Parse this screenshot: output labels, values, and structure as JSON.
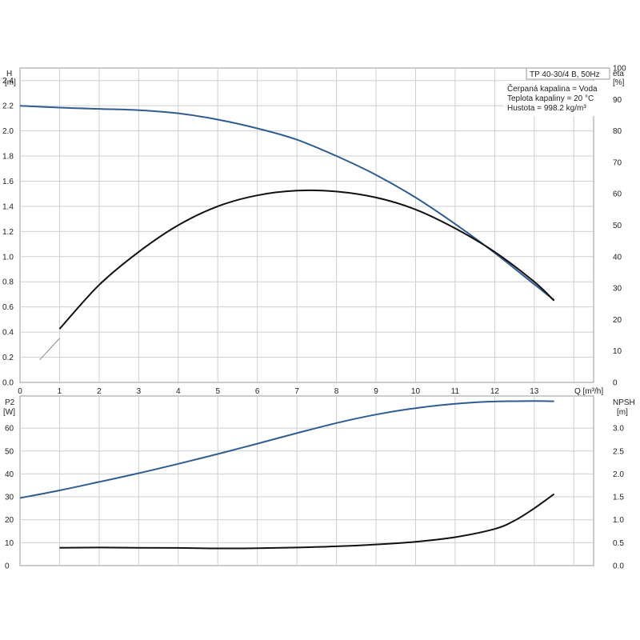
{
  "chart_data": [
    {
      "type": "line",
      "info": {
        "model": "TP 40-30/4 B, 50Hz",
        "lines": [
          "Čerpaná kapalina = Voda",
          "Teplota kapaliny = 20 °C",
          "Hustota = 998.2 kg/m³"
        ]
      },
      "xlabel": "Q [m³/h]",
      "xlim": [
        0,
        14.5
      ],
      "xticks": [
        "0",
        "1",
        "2",
        "3",
        "4",
        "5",
        "6",
        "7",
        "8",
        "9",
        "10",
        "11",
        "12",
        "13"
      ],
      "left_axis": {
        "name": "H",
        "unit": "[m]",
        "ylim": [
          0,
          2.5
        ],
        "ticks": [
          "0.0",
          "0.2",
          "0.4",
          "0.6",
          "0.8",
          "1.0",
          "1.2",
          "1.4",
          "1.6",
          "1.8",
          "2.0",
          "2.2",
          "2.4"
        ]
      },
      "right_axis": {
        "name": "eta",
        "unit": "[%]",
        "ylim": [
          0,
          100
        ],
        "ticks": [
          "0",
          "10",
          "20",
          "30",
          "40",
          "50",
          "60",
          "70",
          "80",
          "90",
          "100"
        ]
      },
      "series": [
        {
          "axis": "left",
          "color": "#2e5c93",
          "x": [
            0,
            1,
            2,
            3,
            4,
            5,
            6,
            7,
            8,
            9,
            10,
            11,
            12,
            13,
            13.5
          ],
          "y": [
            2.2,
            2.185,
            2.175,
            2.165,
            2.14,
            2.09,
            2.02,
            1.93,
            1.8,
            1.65,
            1.47,
            1.26,
            1.03,
            0.78,
            0.655
          ]
        },
        {
          "axis": "right",
          "color": "#111111",
          "x": [
            1,
            2,
            3,
            4,
            5,
            6,
            7,
            8,
            9,
            10,
            11,
            12,
            13,
            13.5
          ],
          "y": [
            17,
            31,
            41.5,
            50,
            56,
            59.5,
            61,
            60.7,
            58.8,
            55,
            49,
            41.5,
            32,
            26
          ]
        }
      ],
      "extension": {
        "x": [
          0.5,
          1
        ],
        "y": [
          0.18,
          0.35
        ]
      }
    },
    {
      "type": "line",
      "left_axis": {
        "name": "P2",
        "unit": "[W]",
        "ylim": [
          0,
          74
        ],
        "ticks": [
          "0",
          "10",
          "20",
          "30",
          "40",
          "50",
          "60"
        ]
      },
      "right_axis": {
        "name": "NPSH",
        "unit": "[m]",
        "ylim": [
          0,
          3.7
        ],
        "ticks": [
          "0.0",
          "0.5",
          "1.0",
          "1.5",
          "2.0",
          "2.5",
          "3.0"
        ]
      },
      "xlim": [
        0,
        14.5
      ],
      "series": [
        {
          "axis": "left",
          "color": "#2e5c93",
          "x": [
            0,
            1,
            2,
            3,
            4,
            5,
            6,
            7,
            8,
            9,
            10,
            11,
            12,
            13,
            13.5
          ],
          "y": [
            29.5,
            32.8,
            36.5,
            40.3,
            44.4,
            48.7,
            53.2,
            57.8,
            62.2,
            65.9,
            68.7,
            70.6,
            71.6,
            71.8,
            71.7
          ]
        },
        {
          "axis": "right",
          "color": "#111111",
          "x": [
            1,
            2,
            3,
            4,
            5,
            6,
            7,
            8,
            9,
            10,
            11,
            12,
            12.5,
            13,
            13.5
          ],
          "y": [
            0.39,
            0.395,
            0.39,
            0.385,
            0.375,
            0.38,
            0.395,
            0.42,
            0.46,
            0.52,
            0.62,
            0.8,
            0.98,
            1.25,
            1.56
          ]
        }
      ]
    }
  ]
}
